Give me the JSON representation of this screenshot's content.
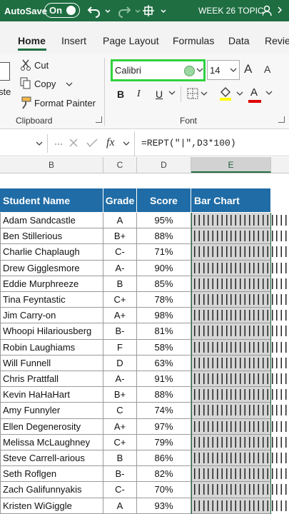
{
  "title_bar": {
    "autosave": "AutoSave",
    "toggle": "On",
    "file_name": "WEEK 26 TOPIC"
  },
  "tabs": [
    "Home",
    "Insert",
    "Page Layout",
    "Formulas",
    "Data",
    "Review"
  ],
  "clipboard": {
    "paste": "ste",
    "cut": "Cut",
    "copy": "Copy",
    "format_painter": "Format Painter",
    "label": "Clipboard"
  },
  "font": {
    "name": "Calibri",
    "size": "14",
    "grow": "A",
    "shrink": "A",
    "bold": "B",
    "italic": "I",
    "underline": "U",
    "color": "A",
    "label": "Font"
  },
  "formula_bar": {
    "fx": "fx",
    "formula": "=REPT(\"|\",D3*100)"
  },
  "columns": [
    "B",
    "C",
    "D",
    "E"
  ],
  "table": {
    "header": [
      "Student Name",
      "Grade",
      "Score",
      "Bar Chart"
    ],
    "rows": [
      [
        "Adam Sandcastle",
        "A",
        "95%"
      ],
      [
        "Ben Stillerious",
        "B+",
        "88%"
      ],
      [
        "Charlie Chaplaugh",
        "C-",
        "71%"
      ],
      [
        "Drew Gigglesmore",
        "A-",
        "90%"
      ],
      [
        "Eddie Murphreeze",
        "B",
        "85%"
      ],
      [
        "Tina Feyntastic",
        "C+",
        "78%"
      ],
      [
        "Jim Carry-on",
        "A+",
        "98%"
      ],
      [
        "Whoopi Hilariousberg",
        "B-",
        "81%"
      ],
      [
        "Robin Laughiams",
        "F",
        "58%"
      ],
      [
        "Will Funnell",
        "D",
        "63%"
      ],
      [
        "Chris Prattfall",
        "A-",
        "91%"
      ],
      [
        "Kevin HaHaHart",
        "B+",
        "88%"
      ],
      [
        "Amy Funnyler",
        "C",
        "74%"
      ],
      [
        "Ellen Degenerosity",
        "A+",
        "97%"
      ],
      [
        "Melissa McLaughney",
        "C+",
        "79%"
      ],
      [
        "Steve Carrell-arious",
        "B",
        "86%"
      ],
      [
        "Seth Roflgen",
        "B-",
        "82%"
      ],
      [
        "Zach Galifunnyakis",
        "C-",
        "70%"
      ],
      [
        "Kristen WiGiggle",
        "A",
        "93%"
      ]
    ]
  }
}
